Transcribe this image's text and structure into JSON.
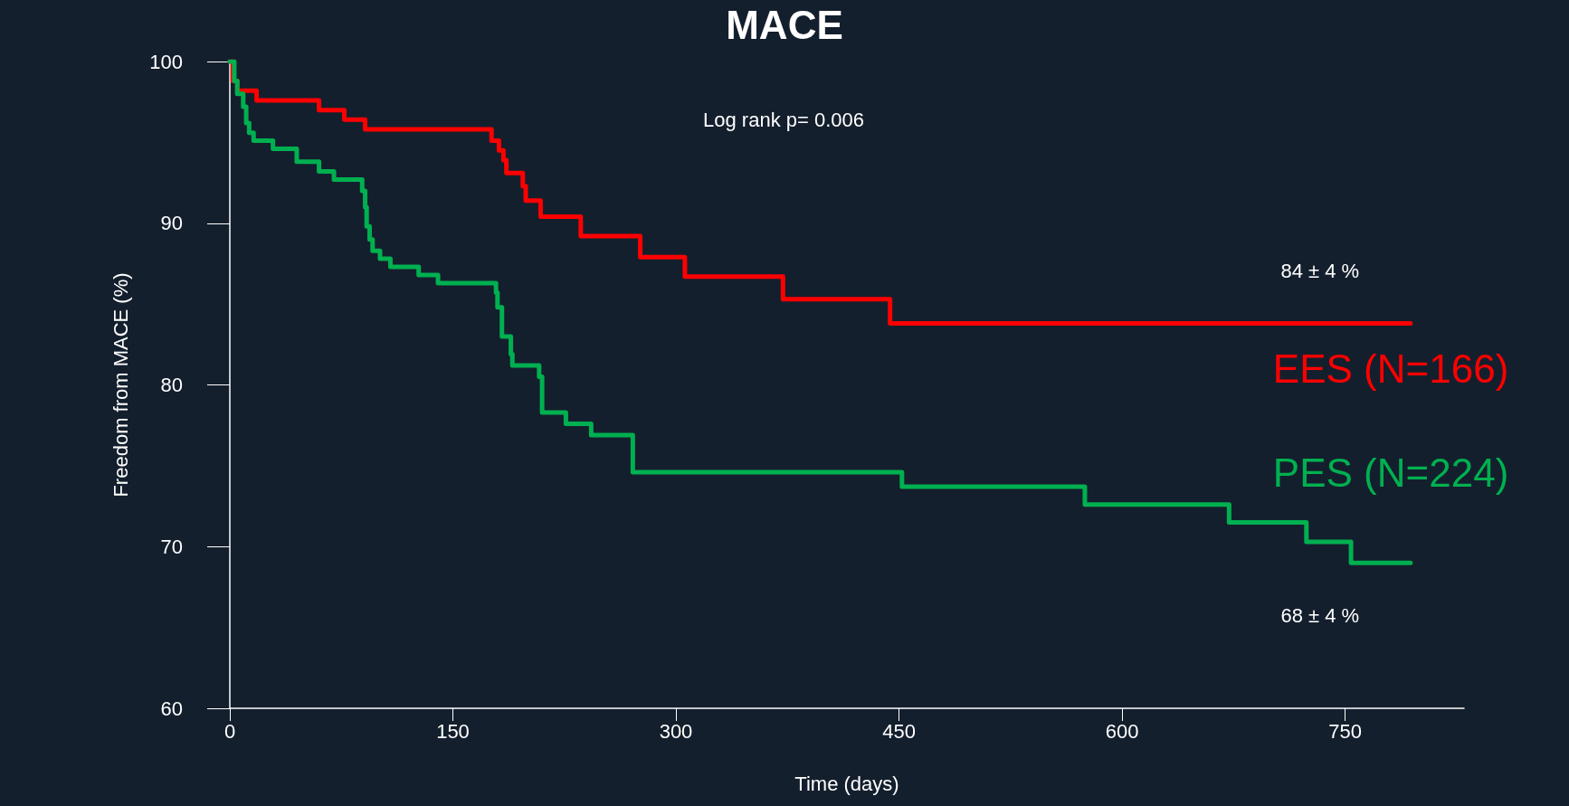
{
  "chart_data": {
    "type": "step",
    "title": "MACE",
    "xlabel": "Time (days)",
    "ylabel": "Freedom from MACE (%)",
    "xlim": [
      0,
      830
    ],
    "xticks": [
      0,
      150,
      300,
      450,
      600,
      750
    ],
    "ylim": [
      60,
      100
    ],
    "yticks": [
      60,
      70,
      80,
      90,
      100
    ],
    "grid": false,
    "legend": false,
    "marker": "none",
    "line_style": "solid",
    "annotations": [
      "Log rank p= 0.006",
      "84 ± 4 %",
      "68 ± 4 %"
    ],
    "series": [
      {
        "name": "EES (N=166)",
        "color": "#ff0000",
        "x": [
          0,
          2,
          5,
          18,
          60,
          77,
          91,
          176,
          181,
          184,
          186,
          197,
          199,
          209,
          236,
          276,
          306,
          372,
          444,
          794
        ],
        "values": [
          100,
          98.8,
          98.2,
          97.6,
          97.0,
          96.4,
          95.8,
          95.1,
          94.5,
          93.9,
          93.1,
          92.3,
          91.4,
          90.4,
          89.2,
          87.9,
          86.7,
          85.3,
          83.8,
          83.8
        ]
      },
      {
        "name": "PES (N=224)",
        "color": "#00b050",
        "x": [
          0,
          3,
          5,
          9,
          11,
          13,
          16,
          29,
          45,
          60,
          70,
          89,
          91,
          92,
          94,
          96,
          101,
          108,
          127,
          140,
          179,
          180,
          183,
          189,
          190,
          208,
          210,
          226,
          243,
          271,
          452,
          575,
          672,
          724,
          754,
          794
        ],
        "values": [
          100,
          98.8,
          98.0,
          97.2,
          96.2,
          95.6,
          95.1,
          94.6,
          93.8,
          93.2,
          92.7,
          92.0,
          91.0,
          89.8,
          89.0,
          88.3,
          87.8,
          87.3,
          86.8,
          86.3,
          85.7,
          84.8,
          83.0,
          81.9,
          81.2,
          80.5,
          78.3,
          77.6,
          76.9,
          74.6,
          73.7,
          72.6,
          71.5,
          70.3,
          69.0,
          69.0
        ]
      }
    ]
  }
}
